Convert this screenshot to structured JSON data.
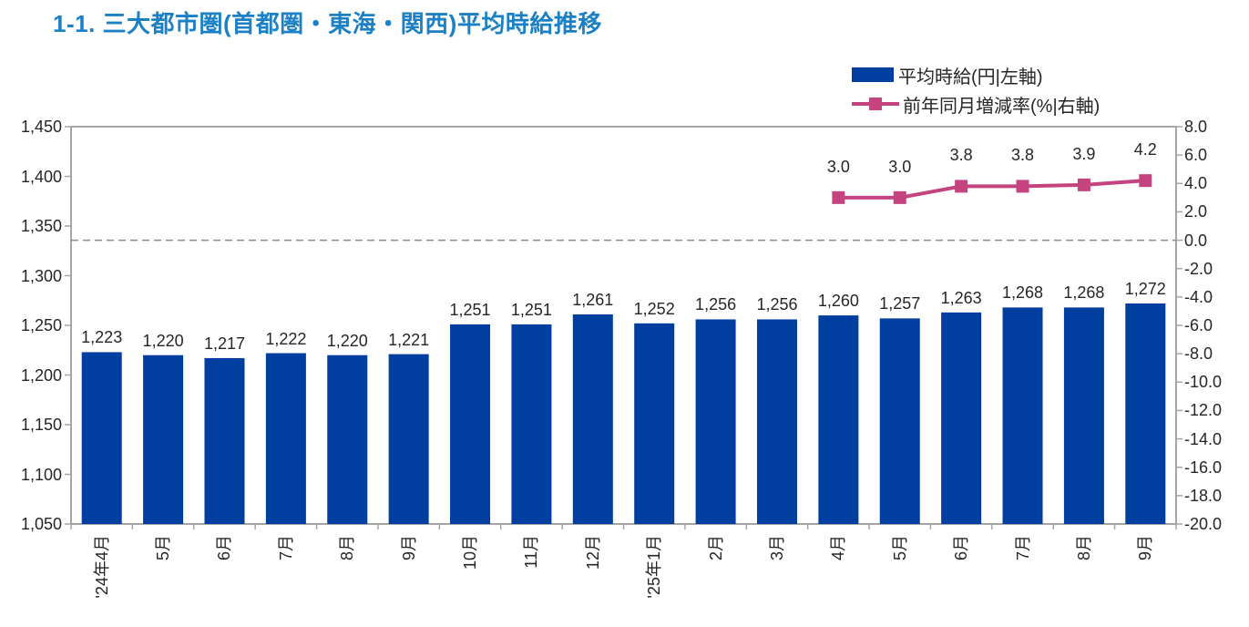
{
  "colors": {
    "title": "#1B80C4",
    "bar": "#003E9F",
    "line": "#C5437F",
    "axis": "#A6A6A6",
    "zero_line": "#8C8C8C",
    "text": "#262626"
  },
  "chart_data": {
    "type": "bar",
    "title": "1-1. 三大都市圏(首都圏・東海・関西)平均時給推移",
    "categories": [
      "'24年4月",
      "5月",
      "6月",
      "7月",
      "8月",
      "9月",
      "10月",
      "11月",
      "12月",
      "'25年1月",
      "2月",
      "3月",
      "4月",
      "5月",
      "6月",
      "7月",
      "8月",
      "9月"
    ],
    "series": [
      {
        "name": "平均時給(円|左軸)",
        "type": "bar",
        "axis": "left",
        "values": [
          1223,
          1220,
          1217,
          1222,
          1220,
          1221,
          1251,
          1251,
          1261,
          1252,
          1256,
          1256,
          1260,
          1257,
          1263,
          1268,
          1268,
          1272
        ]
      },
      {
        "name": "前年同月増減率(%|右軸)",
        "type": "line",
        "axis": "right",
        "values": [
          null,
          null,
          null,
          null,
          null,
          null,
          null,
          null,
          null,
          null,
          null,
          null,
          3.0,
          3.0,
          3.8,
          3.8,
          3.9,
          4.2
        ]
      }
    ],
    "left_axis": {
      "label": "平均時給(円)",
      "min": 1050,
      "max": 1450,
      "step": 50
    },
    "right_axis": {
      "label": "前年同月増減率(%)",
      "min": -20.0,
      "max": 8.0,
      "step": 2.0
    },
    "zero_reference_line": 0.0,
    "grid": "off",
    "legend_position": "top-right"
  }
}
